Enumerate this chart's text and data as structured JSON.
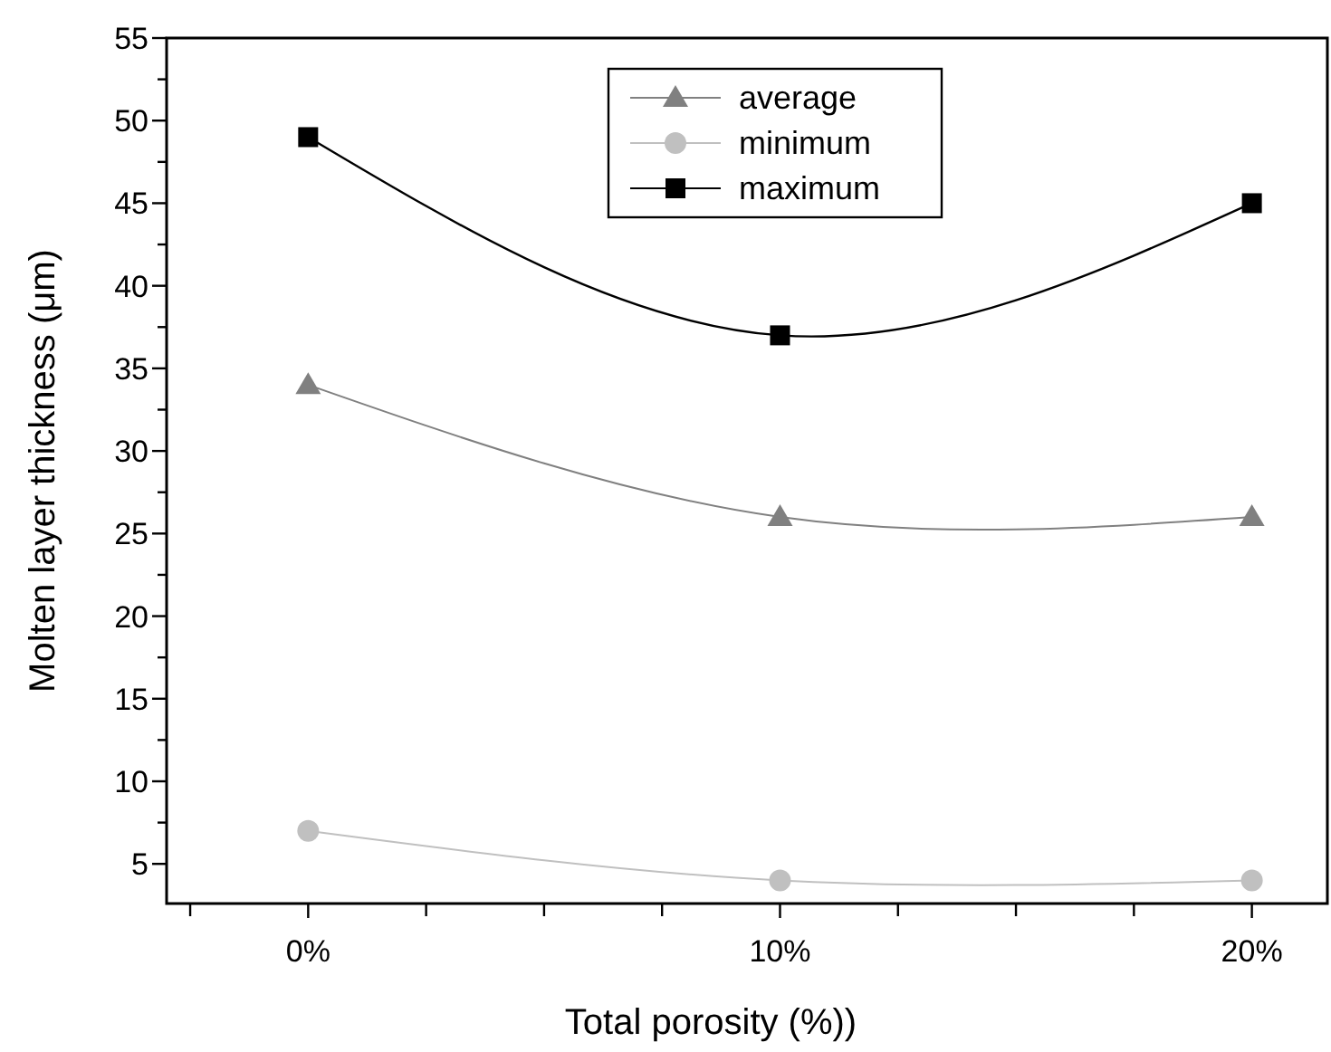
{
  "chart_data": {
    "type": "line",
    "xlabel": "Total  porosity (%))",
    "ylabel": "Molten layer thickness (μm)",
    "x": [
      0,
      10,
      20
    ],
    "series": [
      {
        "name": "average",
        "color": "#808080",
        "values": [
          34,
          26,
          26
        ],
        "marker": "triangle"
      },
      {
        "name": "minimum",
        "color": "#c0c0c0",
        "values": [
          7,
          4,
          4
        ],
        "marker": "circle"
      },
      {
        "name": "maximum",
        "color": "#000000",
        "values": [
          49,
          37,
          45
        ],
        "marker": "square"
      }
    ],
    "xlim": [
      -3,
      21.6
    ],
    "xticks": [
      {
        "value": -2.5,
        "label": null
      },
      {
        "value": 0,
        "label": "0%"
      },
      {
        "value": 2.5,
        "label": null
      },
      {
        "value": 5,
        "label": null
      },
      {
        "value": 7.5,
        "label": null
      },
      {
        "value": 10,
        "label": "10%"
      },
      {
        "value": 12.5,
        "label": null
      },
      {
        "value": 15,
        "label": null
      },
      {
        "value": 17.5,
        "label": null
      },
      {
        "value": 20,
        "label": "20%"
      }
    ],
    "ylim": [
      2.6,
      55
    ],
    "yticks": [
      5,
      {
        "value": 7.5,
        "label": null
      },
      10,
      {
        "value": 12.5,
        "label": null
      },
      15,
      {
        "value": 17.5,
        "label": null
      },
      20,
      {
        "value": 22.5,
        "label": null
      },
      25,
      {
        "value": 27.5,
        "label": null
      },
      30,
      {
        "value": 32.5,
        "label": null
      },
      35,
      {
        "value": 37.5,
        "label": null
      },
      40,
      {
        "value": 42.5,
        "label": null
      },
      45,
      {
        "value": 47.5,
        "label": null
      },
      50,
      {
        "value": 52.5,
        "label": null
      },
      55
    ],
    "grid": false,
    "legend": "top",
    "line_style": "solid"
  }
}
